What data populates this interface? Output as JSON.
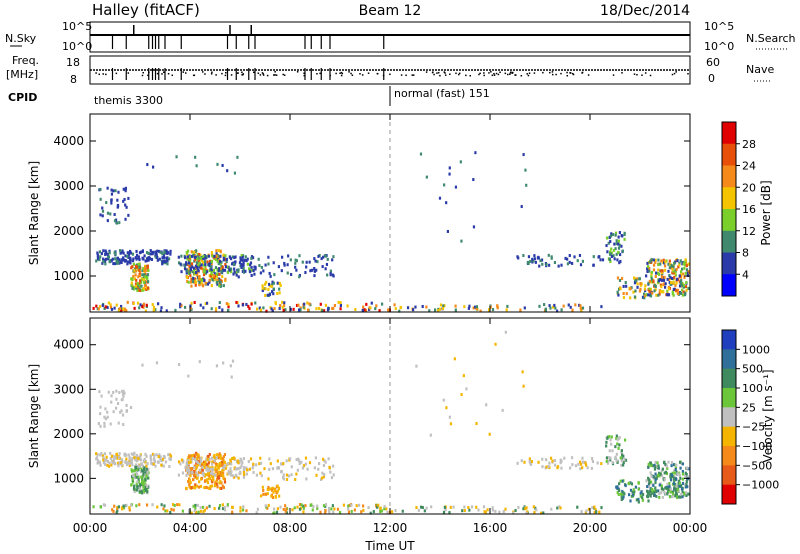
{
  "header": {
    "station": "Halley (fitACF)",
    "beam": "Beam 12",
    "date": "18/Dec/2014"
  },
  "summary": {
    "nsky_label": "N.Sky",
    "freq_label": "Freq.",
    "freq_unit": "[MHz]",
    "cpid_label": "CPID",
    "nsearch_label": "N.Search",
    "nave_label": "Nave",
    "nsky_ticks": [
      "10^5",
      "10^0"
    ],
    "nsearch_ticks": [
      "10^5",
      "10^0"
    ],
    "freq_ticks": [
      18,
      8
    ],
    "nave_ticks": [
      60,
      0
    ],
    "cpid_segments": [
      {
        "name": "themis 3300",
        "start": 0
      },
      {
        "name": "normal (fast) 151",
        "start": 12.0
      }
    ]
  },
  "chart_data": [
    {
      "type": "heatmap",
      "name": "power-panel",
      "ylabel": "Slant Range [km]",
      "ylim": [
        200,
        4600
      ],
      "yticks": [
        1000,
        2000,
        3000,
        4000
      ],
      "xlim": [
        0,
        24
      ],
      "colorbar": {
        "label": "Power [dB]",
        "ticks": [
          "4",
          "8",
          "12",
          "16",
          "20",
          "24",
          "28"
        ],
        "colors": [
          "#0000ff",
          "#2a3aa8",
          "#3f8a6e",
          "#7bcf2a",
          "#f4c400",
          "#f58a1a",
          "#e8500a",
          "#e00000"
        ]
      }
    },
    {
      "type": "heatmap",
      "name": "velocity-panel",
      "ylabel": "Slant Range [km]",
      "ylim": [
        200,
        4600
      ],
      "yticks": [
        1000,
        2000,
        3000,
        4000
      ],
      "xlim": [
        0,
        24
      ],
      "xticks": [
        "00:00",
        "04:00",
        "08:00",
        "12:00",
        "16:00",
        "20:00",
        "00:00"
      ],
      "xlabel": "Time UT",
      "colorbar": {
        "label": "Velocity [m s⁻¹]",
        "ticks": [
          "1000",
          "500",
          "100",
          "25",
          "−25",
          "−100",
          "−500",
          "−1000"
        ],
        "colors": [
          "#1f3fbf",
          "#2f6f9a",
          "#3f8a5e",
          "#6bc63a",
          "#c0c0c0",
          "#f4b400",
          "#f58a1a",
          "#e85a1a",
          "#e00000"
        ]
      }
    }
  ]
}
